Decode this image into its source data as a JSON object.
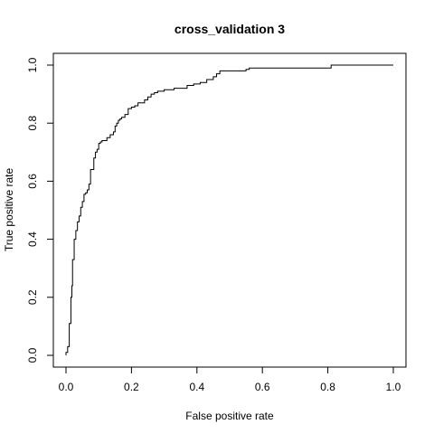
{
  "chart_data": {
    "type": "line",
    "title": "cross_validation  3",
    "xlabel": "False positive rate",
    "ylabel": "True positive rate",
    "xlim": [
      0,
      1
    ],
    "ylim": [
      0,
      1
    ],
    "xticks": [
      0.0,
      0.2,
      0.4,
      0.6,
      0.8,
      1.0
    ],
    "yticks": [
      0.0,
      0.2,
      0.4,
      0.6,
      0.8,
      1.0
    ],
    "xtick_labels": [
      "0.0",
      "0.2",
      "0.4",
      "0.6",
      "0.8",
      "1.0"
    ],
    "ytick_labels": [
      "0.0",
      "0.2",
      "0.4",
      "0.6",
      "0.8",
      "1.0"
    ],
    "grid": false,
    "line_color": "#000000",
    "series": [
      {
        "step": true,
        "x": [
          0.0,
          0.0,
          0.005,
          0.005,
          0.01,
          0.01,
          0.015,
          0.015,
          0.018,
          0.018,
          0.02,
          0.02,
          0.025,
          0.025,
          0.03,
          0.03,
          0.035,
          0.035,
          0.04,
          0.04,
          0.045,
          0.045,
          0.05,
          0.05,
          0.055,
          0.055,
          0.06,
          0.06,
          0.065,
          0.065,
          0.07,
          0.07,
          0.075,
          0.075,
          0.085,
          0.085,
          0.09,
          0.09,
          0.095,
          0.095,
          0.1,
          0.1,
          0.105,
          0.105,
          0.11,
          0.11,
          0.125,
          0.125,
          0.135,
          0.135,
          0.145,
          0.145,
          0.15,
          0.15,
          0.155,
          0.155,
          0.16,
          0.16,
          0.165,
          0.165,
          0.17,
          0.17,
          0.18,
          0.18,
          0.19,
          0.19,
          0.2,
          0.2,
          0.21,
          0.21,
          0.22,
          0.22,
          0.24,
          0.24,
          0.25,
          0.25,
          0.26,
          0.26,
          0.27,
          0.27,
          0.28,
          0.28,
          0.3,
          0.3,
          0.33,
          0.33,
          0.37,
          0.37,
          0.39,
          0.39,
          0.41,
          0.41,
          0.43,
          0.43,
          0.45,
          0.45,
          0.46,
          0.46,
          0.47,
          0.47,
          0.55,
          0.55,
          0.56,
          0.56,
          0.81,
          0.81,
          1.0
        ],
        "y": [
          0.0,
          0.01,
          0.01,
          0.03,
          0.03,
          0.11,
          0.11,
          0.2,
          0.2,
          0.24,
          0.24,
          0.33,
          0.33,
          0.4,
          0.4,
          0.43,
          0.43,
          0.46,
          0.46,
          0.48,
          0.48,
          0.51,
          0.51,
          0.53,
          0.53,
          0.555,
          0.555,
          0.56,
          0.56,
          0.57,
          0.57,
          0.59,
          0.59,
          0.64,
          0.64,
          0.68,
          0.68,
          0.7,
          0.7,
          0.71,
          0.71,
          0.73,
          0.73,
          0.735,
          0.735,
          0.74,
          0.74,
          0.75,
          0.75,
          0.76,
          0.76,
          0.77,
          0.77,
          0.79,
          0.79,
          0.8,
          0.8,
          0.81,
          0.81,
          0.815,
          0.815,
          0.82,
          0.82,
          0.83,
          0.83,
          0.85,
          0.85,
          0.855,
          0.855,
          0.86,
          0.86,
          0.87,
          0.87,
          0.88,
          0.88,
          0.89,
          0.89,
          0.9,
          0.9,
          0.905,
          0.905,
          0.91,
          0.91,
          0.915,
          0.915,
          0.92,
          0.92,
          0.93,
          0.93,
          0.935,
          0.935,
          0.94,
          0.94,
          0.95,
          0.95,
          0.96,
          0.96,
          0.97,
          0.97,
          0.98,
          0.98,
          0.985,
          0.985,
          0.99,
          0.99,
          1.0,
          1.0
        ]
      }
    ]
  }
}
